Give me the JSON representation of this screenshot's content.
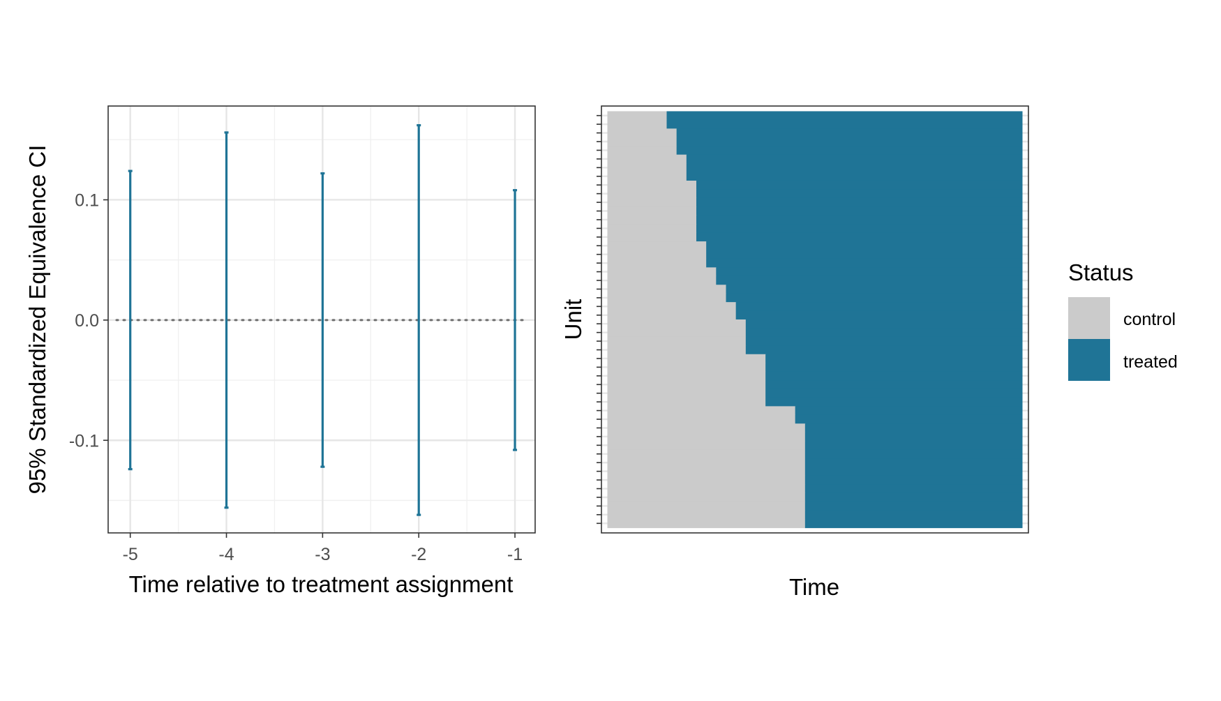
{
  "chart_data": [
    {
      "type": "errorbar",
      "xlabel": "Time relative to treatment assignment",
      "ylabel": "95% Standardized Equivalence CI",
      "x_ticks": [
        "-5",
        "-4",
        "-3",
        "-2",
        "-1"
      ],
      "y_ticks": [
        "0.1",
        "0.0",
        "-0.1"
      ],
      "xlim": [
        -5.23,
        -0.79
      ],
      "ylim": [
        -0.177,
        0.178
      ],
      "grid": true,
      "reference_line": {
        "y": 0.0,
        "style": "dotted"
      },
      "color": "#1f7496",
      "points": [
        {
          "x": -5,
          "lower": -0.124,
          "upper": 0.124
        },
        {
          "x": -4,
          "lower": -0.156,
          "upper": 0.156
        },
        {
          "x": -3,
          "lower": -0.122,
          "upper": 0.122
        },
        {
          "x": -2,
          "lower": -0.162,
          "upper": 0.162
        },
        {
          "x": -1,
          "lower": -0.108,
          "upper": 0.108
        }
      ]
    },
    {
      "type": "heatmap",
      "xlabel": "Time",
      "ylabel": "Unit",
      "legend": {
        "title": "Status",
        "position": "right",
        "items": [
          {
            "label": "control",
            "color": "#cbcbcb"
          },
          {
            "label": "treated",
            "color": "#1f7496"
          }
        ]
      },
      "n_periods": 42,
      "n_units": 48,
      "treatment_start_by_unit": [
        7,
        7,
        8,
        8,
        8,
        9,
        9,
        9,
        10,
        10,
        10,
        10,
        10,
        10,
        10,
        11,
        11,
        11,
        12,
        12,
        13,
        13,
        14,
        14,
        15,
        15,
        15,
        15,
        17,
        17,
        17,
        17,
        17,
        17,
        20,
        20,
        21,
        21,
        21,
        21,
        21,
        21,
        21,
        21,
        21,
        21,
        21,
        21
      ]
    }
  ]
}
